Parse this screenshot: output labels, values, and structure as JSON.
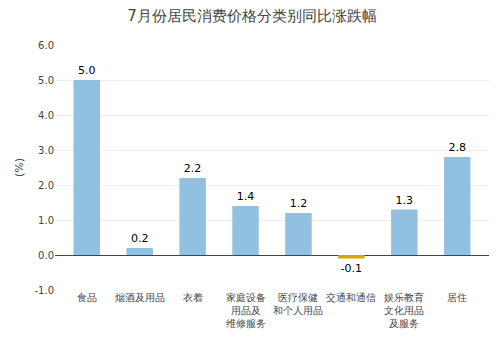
{
  "chart_data": {
    "type": "bar",
    "title": "7月份居民消费价格分类别同比涨跌幅",
    "ylabel": "(%)",
    "categories": [
      "食品",
      "烟酒及用品",
      "衣着",
      "家庭设备\n用品及\n维修服务",
      "医疗保健\n和个人用品",
      "交通和通信",
      "娱乐教育\n文化用品\n及服务",
      "居住"
    ],
    "values": [
      5.0,
      0.2,
      2.2,
      1.4,
      1.2,
      -0.1,
      1.3,
      2.8
    ],
    "value_labels": [
      "5.0",
      "0.2",
      "2.2",
      "1.4",
      "1.2",
      "-0.1",
      "1.3",
      "2.8"
    ],
    "data_labels": true,
    "colors": [
      "#92c0e0",
      "#92c0e0",
      "#92c0e0",
      "#92c0e0",
      "#92c0e0",
      "#d4aa00",
      "#92c0e0",
      "#92c0e0"
    ],
    "ylim": [
      -1.0,
      6.0
    ],
    "yticks": [
      {
        "value": -1.0,
        "label": "-1.0"
      },
      {
        "value": 0.0,
        "label": "0.0"
      },
      {
        "value": 1.0,
        "label": "1.0"
      },
      {
        "value": 2.0,
        "label": "2.0"
      },
      {
        "value": 3.0,
        "label": "3.0"
      },
      {
        "value": 4.0,
        "label": "4.0"
      },
      {
        "value": 5.0,
        "label": "5.0"
      },
      {
        "value": 6.0,
        "label": "6.0"
      }
    ],
    "grid": true
  }
}
